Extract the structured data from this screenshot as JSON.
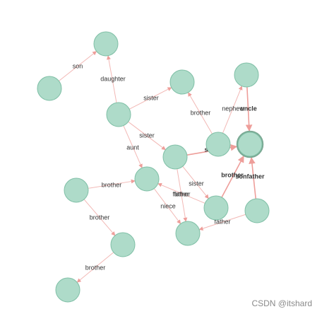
{
  "graph": {
    "nodes": [
      {
        "id": "n1"
      },
      {
        "id": "n2"
      },
      {
        "id": "n3"
      },
      {
        "id": "n4"
      },
      {
        "id": "n5"
      },
      {
        "id": "n6"
      },
      {
        "id": "n7"
      },
      {
        "id": "n8"
      },
      {
        "id": "n9"
      },
      {
        "id": "n10"
      },
      {
        "id": "n11"
      },
      {
        "id": "n12"
      },
      {
        "id": "n13"
      },
      {
        "id": "n14"
      },
      {
        "id": "n15"
      },
      {
        "id": "n16"
      }
    ],
    "selected_node": "n10",
    "edges": [
      {
        "from": "n2",
        "to": "n1",
        "label": "son"
      },
      {
        "from": "n4",
        "to": "n1",
        "label": "daughter"
      },
      {
        "from": "n4",
        "to": "n3",
        "label": "sister"
      },
      {
        "from": "n4",
        "to": "n6",
        "label": "sister"
      },
      {
        "from": "n4",
        "to": "n8",
        "label": "aunt"
      },
      {
        "from": "n9",
        "to": "n3",
        "label": "brother"
      },
      {
        "from": "n9",
        "to": "n5",
        "label": "nephew"
      },
      {
        "from": "n5",
        "to": "n10",
        "label": "uncle"
      },
      {
        "from": "n6",
        "to": "n10",
        "label": "s"
      },
      {
        "from": "n6",
        "to": "n11",
        "label": "sister"
      },
      {
        "from": "n6",
        "to": "n13",
        "label": "father"
      },
      {
        "from": "n8",
        "to": "n13",
        "label": "niece"
      },
      {
        "from": "n7",
        "to": "n8",
        "label": "brother"
      },
      {
        "from": "n7",
        "to": "n12",
        "label": "brother"
      },
      {
        "from": "n12",
        "to": "n14",
        "label": "brother"
      },
      {
        "from": "n11",
        "to": "n8",
        "label": "father"
      },
      {
        "from": "n11",
        "to": "n10",
        "label": "brother"
      },
      {
        "from": "n15",
        "to": "n10",
        "label": "sonfather"
      },
      {
        "from": "n15",
        "to": "n13",
        "label": "father"
      }
    ]
  },
  "watermark": "CSDN @itshard"
}
